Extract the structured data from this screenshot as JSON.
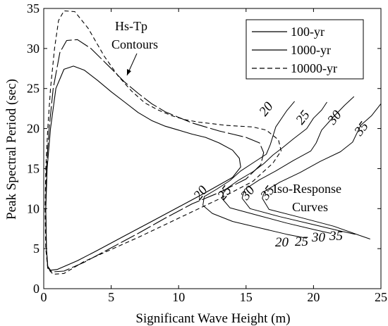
{
  "chart_data": {
    "type": "line",
    "xlabel": "Significant Wave Height (m)",
    "ylabel": "Peak Spectral Period (sec)",
    "xlim": [
      0,
      25
    ],
    "ylim": [
      0,
      35
    ],
    "xticks": [
      0,
      5,
      10,
      15,
      20,
      25
    ],
    "yticks": [
      0,
      5,
      10,
      15,
      20,
      25,
      30,
      35
    ],
    "grid": false,
    "legend_position": "top-right",
    "series": [
      {
        "name": "100-yr",
        "style": "solid",
        "points": [
          [
            0.3,
            2.8
          ],
          [
            0.2,
            5
          ],
          [
            0.15,
            10
          ],
          [
            0.25,
            15
          ],
          [
            0.5,
            20
          ],
          [
            0.9,
            25
          ],
          [
            1.5,
            27.4
          ],
          [
            2.2,
            27.8
          ],
          [
            3,
            27.3
          ],
          [
            4,
            26
          ],
          [
            5,
            24.6
          ],
          [
            6,
            23.3
          ],
          [
            7,
            22
          ],
          [
            8,
            21
          ],
          [
            9,
            20.3
          ],
          [
            10,
            19.8
          ],
          [
            11,
            19.3
          ],
          [
            12,
            18.9
          ],
          [
            13,
            18.2
          ],
          [
            14,
            17.3
          ],
          [
            14.5,
            16.3
          ],
          [
            14.6,
            15.2
          ],
          [
            14,
            13.9
          ],
          [
            12,
            12
          ],
          [
            10,
            10.2
          ],
          [
            8,
            8.4
          ],
          [
            6,
            6.6
          ],
          [
            4,
            4.8
          ],
          [
            2.5,
            3.5
          ],
          [
            1,
            2.4
          ],
          [
            0.5,
            2.3
          ],
          [
            0.3,
            2.8
          ]
        ]
      },
      {
        "name": "1000-yr",
        "style": "solid",
        "points": [
          [
            0.3,
            2.6
          ],
          [
            0.2,
            5
          ],
          [
            0.15,
            10
          ],
          [
            0.2,
            15
          ],
          [
            0.4,
            20
          ],
          [
            0.7,
            25
          ],
          [
            1.2,
            29.5
          ],
          [
            1.7,
            31
          ],
          [
            2.5,
            31.1
          ],
          [
            3.5,
            30
          ],
          [
            5,
            27.5
          ],
          [
            6,
            25.8
          ],
          [
            7,
            24.4
          ],
          [
            8,
            23.1
          ],
          [
            9,
            22.1
          ],
          [
            10,
            21.4
          ],
          [
            11,
            20.7
          ],
          [
            12,
            20.2
          ],
          [
            13,
            19.7
          ],
          [
            14,
            19.3
          ],
          [
            15,
            18.9
          ],
          [
            16,
            18.2
          ],
          [
            16.3,
            17
          ],
          [
            16.1,
            15.5
          ],
          [
            15,
            13.7
          ],
          [
            13,
            12
          ],
          [
            11,
            10.6
          ],
          [
            9,
            8.8
          ],
          [
            7,
            6.9
          ],
          [
            5,
            5.1
          ],
          [
            3,
            3.3
          ],
          [
            1.5,
            2.2
          ],
          [
            0.6,
            2.1
          ],
          [
            0.3,
            2.6
          ]
        ]
      },
      {
        "name": "10000-yr",
        "style": "dashed",
        "points": [
          [
            0.3,
            2.5
          ],
          [
            0.15,
            5
          ],
          [
            0.1,
            10
          ],
          [
            0.15,
            15
          ],
          [
            0.3,
            20
          ],
          [
            0.5,
            25
          ],
          [
            0.8,
            30
          ],
          [
            1.1,
            33.5
          ],
          [
            1.5,
            34.7
          ],
          [
            2.3,
            34.6
          ],
          [
            3.3,
            32.5
          ],
          [
            4.5,
            29
          ],
          [
            5.5,
            26.6
          ],
          [
            6.5,
            24.7
          ],
          [
            7.5,
            23.2
          ],
          [
            8.5,
            22.3
          ],
          [
            9.5,
            21.6
          ],
          [
            10.5,
            21.1
          ],
          [
            11.5,
            20.8
          ],
          [
            12.5,
            20.6
          ],
          [
            13.5,
            20.4
          ],
          [
            14.5,
            20.3
          ],
          [
            15.5,
            20.2
          ],
          [
            16.5,
            19.8
          ],
          [
            17.4,
            18.6
          ],
          [
            17.6,
            17.2
          ],
          [
            17,
            15.7
          ],
          [
            15.5,
            13.4
          ],
          [
            13,
            11.2
          ],
          [
            11,
            9.6
          ],
          [
            9,
            8
          ],
          [
            7,
            6.4
          ],
          [
            5,
            4.9
          ],
          [
            3,
            3.4
          ],
          [
            1.5,
            1.9
          ],
          [
            0.7,
            1.8
          ],
          [
            0.3,
            2.5
          ]
        ]
      }
    ],
    "iso_response_curves": [
      {
        "label": "20",
        "points": [
          [
            11.8,
            10.4
          ],
          [
            11.9,
            11.5
          ],
          [
            12.8,
            12.4
          ],
          [
            13.8,
            13.5
          ],
          [
            14.6,
            14.7
          ],
          [
            15.5,
            15.7
          ],
          [
            16.5,
            16.8
          ],
          [
            16.8,
            18
          ],
          [
            17.2,
            20.2
          ],
          [
            18,
            22.2
          ],
          [
            18.6,
            23.4
          ]
        ]
      },
      {
        "label": "25",
        "points": [
          [
            13.2,
            11.3
          ],
          [
            13.4,
            12.3
          ],
          [
            14.4,
            13.5
          ],
          [
            15.5,
            14.6
          ],
          [
            16.3,
            15.6
          ],
          [
            17,
            16.7
          ],
          [
            17.7,
            17.6
          ],
          [
            18.5,
            18.7
          ],
          [
            19.5,
            20
          ],
          [
            20,
            21.3
          ],
          [
            20.6,
            22.3
          ],
          [
            21,
            23.3
          ]
        ]
      },
      {
        "label": "30",
        "points": [
          [
            14.7,
            11.3
          ],
          [
            14.9,
            12.4
          ],
          [
            16,
            13.6
          ],
          [
            17.2,
            14.7
          ],
          [
            18.5,
            16
          ],
          [
            19.8,
            17.2
          ],
          [
            20.2,
            18.2
          ],
          [
            20.6,
            19.8
          ],
          [
            21.5,
            21.5
          ],
          [
            22.3,
            22.9
          ],
          [
            23,
            24
          ]
        ]
      },
      {
        "label": "35",
        "points": [
          [
            16.2,
            11.3
          ],
          [
            16.4,
            12.2
          ],
          [
            17.5,
            13.3
          ],
          [
            19,
            14.5
          ],
          [
            20.5,
            15.9
          ],
          [
            22,
            17.1
          ],
          [
            22.9,
            18.3
          ],
          [
            23.5,
            20.4
          ],
          [
            24.3,
            21.6
          ],
          [
            25,
            23.1
          ]
        ]
      },
      {
        "label": "20",
        "points": [
          [
            11.8,
            10.4
          ],
          [
            12.5,
            9.4
          ],
          [
            14,
            8.4
          ],
          [
            16,
            7.6
          ],
          [
            18,
            6.8
          ],
          [
            19.5,
            6.3
          ]
        ]
      },
      {
        "label": "25",
        "points": [
          [
            13.2,
            11.3
          ],
          [
            13.8,
            10.1
          ],
          [
            16,
            9.1
          ],
          [
            18,
            8.2
          ],
          [
            20,
            7.4
          ],
          [
            21.3,
            6.9
          ]
        ]
      },
      {
        "label": "30",
        "points": [
          [
            14.7,
            11.3
          ],
          [
            15.3,
            10
          ],
          [
            17.5,
            9
          ],
          [
            20,
            8
          ],
          [
            22,
            7.2
          ],
          [
            23.1,
            6.8
          ]
        ]
      },
      {
        "label": "35",
        "points": [
          [
            16.2,
            11.3
          ],
          [
            16.7,
            9.9
          ],
          [
            18.8,
            9
          ],
          [
            21.5,
            7.8
          ],
          [
            23.5,
            6.6
          ],
          [
            24.2,
            6.2
          ]
        ]
      }
    ],
    "annotations": [
      {
        "line1": "Hs-Tp",
        "line2": "Contours"
      },
      {
        "line1": "Iso-Response",
        "line2": "Curves"
      }
    ],
    "curve_labels": [
      "20",
      "25",
      "30",
      "35",
      "20",
      "25",
      "30",
      "35"
    ]
  }
}
